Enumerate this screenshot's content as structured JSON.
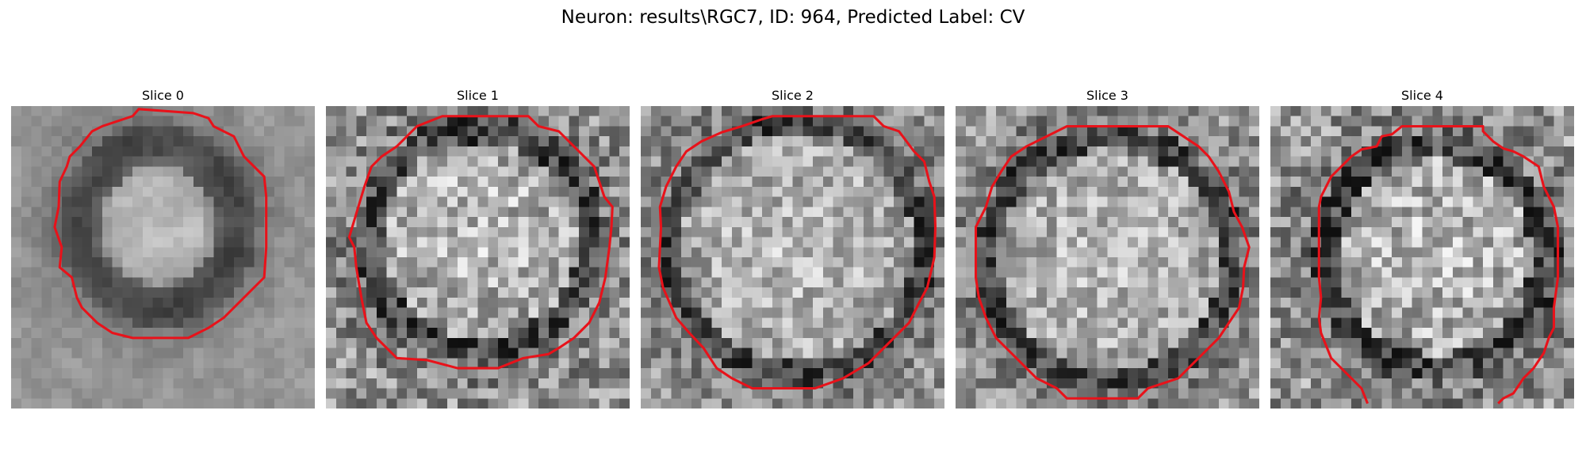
{
  "figure": {
    "title": "Neuron: results\\RGC7, ID: 964, Predicted Label: CV"
  },
  "panels": [
    {
      "label": "Slice 0",
      "variant": 0
    },
    {
      "label": "Slice 1",
      "variant": 1
    },
    {
      "label": "Slice 2",
      "variant": 2
    },
    {
      "label": "Slice 3",
      "variant": 3
    },
    {
      "label": "Slice 4",
      "variant": 4
    }
  ],
  "colors": {
    "contour": "#e8121a",
    "background": "#ffffff"
  }
}
